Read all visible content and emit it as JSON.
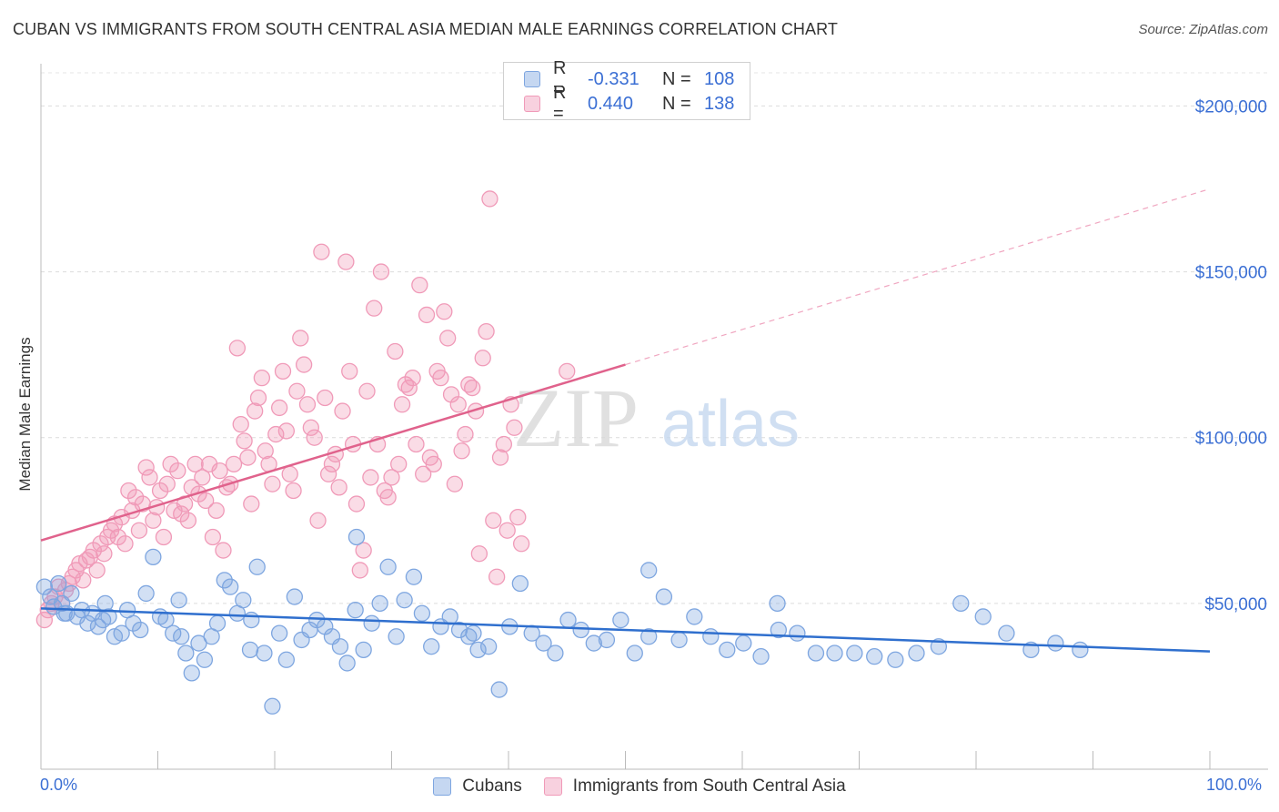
{
  "header": {
    "title": "CUBAN VS IMMIGRANTS FROM SOUTH CENTRAL ASIA MEDIAN MALE EARNINGS CORRELATION CHART",
    "source": "Source: ZipAtlas.com"
  },
  "watermark": {
    "zip": "ZIP",
    "atlas": "atlas"
  },
  "legend": {
    "rows": [
      {
        "r_label": "R =",
        "r_value": "-0.331",
        "n_label": "N =",
        "n_value": "108",
        "color": "#7ea6e0"
      },
      {
        "r_label": "R =",
        "r_value": "0.440",
        "n_label": "N =",
        "n_value": "138",
        "color": "#f09ab8"
      }
    ]
  },
  "bottom_legend": {
    "items": [
      {
        "label": "Cubans",
        "color": "#7ea6e0"
      },
      {
        "label": "Immigrants from South Central Asia",
        "color": "#f09ab8"
      }
    ]
  },
  "axes": {
    "x_min_label": "0.0%",
    "x_max_label": "100.0%",
    "y_labels": [
      "$200,000",
      "$150,000",
      "$100,000",
      "$50,000"
    ]
  },
  "chart_data": {
    "type": "scatter",
    "title": "CUBAN VS IMMIGRANTS FROM SOUTH CENTRAL ASIA MEDIAN MALE EARNINGS CORRELATION CHART",
    "xlabel": "",
    "ylabel": "Median Male Earnings",
    "xlim": [
      0,
      100
    ],
    "ylim": [
      0,
      210000
    ],
    "y_ticks": [
      50000,
      100000,
      150000,
      200000
    ],
    "x_ticks": [
      0,
      10,
      20,
      30,
      40,
      50,
      60,
      70,
      80,
      90,
      100
    ],
    "series": [
      {
        "name": "Cubans",
        "color": "#7ea6e0",
        "line_color": "#2f6fce",
        "R": -0.331,
        "N": 108,
        "trend": {
          "x": [
            0,
            100
          ],
          "y": [
            48500,
            35500
          ]
        },
        "x": [
          0.3,
          0.8,
          1.1,
          1.5,
          1.8,
          2.2,
          2.6,
          3.1,
          3.5,
          4.0,
          4.4,
          4.9,
          5.3,
          5.8,
          6.3,
          6.9,
          7.4,
          7.9,
          8.5,
          9.0,
          9.6,
          10.2,
          10.7,
          11.3,
          11.8,
          12.4,
          12.9,
          13.5,
          14.0,
          14.6,
          15.1,
          15.7,
          16.2,
          16.8,
          17.3,
          17.9,
          18.5,
          19.1,
          19.8,
          20.4,
          21.0,
          21.7,
          22.3,
          23.0,
          23.6,
          24.3,
          24.9,
          25.6,
          26.2,
          26.9,
          27.6,
          28.3,
          29.0,
          29.7,
          30.4,
          31.1,
          31.9,
          32.6,
          33.4,
          34.2,
          35.0,
          35.8,
          36.6,
          37.4,
          38.3,
          39.2,
          40.1,
          41.0,
          42.0,
          43.0,
          44.0,
          45.1,
          46.2,
          47.3,
          48.4,
          49.6,
          50.8,
          52.0,
          53.3,
          54.6,
          55.9,
          57.3,
          58.7,
          60.1,
          61.6,
          63.1,
          64.7,
          66.3,
          67.9,
          69.6,
          71.3,
          73.1,
          74.9,
          76.8,
          78.7,
          80.6,
          82.6,
          84.7,
          86.8,
          88.9,
          2.0,
          5.5,
          12.0,
          18.0,
          27.0,
          37.0,
          52.0,
          63.0
        ],
        "y": [
          55000,
          52000,
          49000,
          56000,
          50000,
          47000,
          53000,
          46000,
          48000,
          44000,
          47000,
          43000,
          45000,
          46000,
          40000,
          41000,
          48000,
          44000,
          42000,
          53000,
          64000,
          46000,
          45000,
          41000,
          51000,
          35000,
          29000,
          38000,
          33000,
          40000,
          44000,
          57000,
          55000,
          47000,
          51000,
          36000,
          61000,
          35000,
          19000,
          41000,
          33000,
          52000,
          39000,
          42000,
          45000,
          43000,
          40000,
          37000,
          32000,
          48000,
          36000,
          44000,
          50000,
          61000,
          40000,
          51000,
          58000,
          47000,
          37000,
          43000,
          46000,
          42000,
          40000,
          36000,
          37000,
          24000,
          43000,
          56000,
          41000,
          38000,
          35000,
          45000,
          42000,
          38000,
          39000,
          45000,
          35000,
          60000,
          52000,
          39000,
          46000,
          40000,
          36000,
          38000,
          34000,
          42000,
          41000,
          35000,
          35000,
          35000,
          34000,
          33000,
          35000,
          37000,
          50000,
          46000,
          41000,
          36000,
          38000,
          36000,
          47000,
          50000,
          40000,
          45000,
          70000,
          41000,
          40000,
          50000
        ]
      },
      {
        "name": "Immigrants from South Central Asia",
        "color": "#f09ab8",
        "line_color": "#e0628c",
        "R": 0.44,
        "N": 138,
        "trend": {
          "x": [
            0,
            50
          ],
          "y": [
            69000,
            122000
          ]
        },
        "trend_dashed": {
          "x": [
            50,
            100
          ],
          "y": [
            122000,
            175000
          ]
        },
        "x": [
          0.3,
          0.6,
          0.9,
          1.2,
          1.5,
          1.8,
          2.1,
          2.4,
          2.7,
          3.0,
          3.3,
          3.6,
          3.9,
          4.2,
          4.5,
          4.8,
          5.1,
          5.4,
          5.7,
          6.0,
          6.3,
          6.6,
          6.9,
          7.2,
          7.5,
          7.8,
          8.1,
          8.4,
          8.7,
          9.0,
          9.3,
          9.6,
          9.9,
          10.2,
          10.5,
          10.8,
          11.1,
          11.4,
          11.7,
          12.0,
          12.3,
          12.6,
          12.9,
          13.2,
          13.5,
          13.8,
          14.1,
          14.4,
          14.7,
          15.0,
          15.3,
          15.6,
          15.9,
          16.2,
          16.5,
          16.8,
          17.1,
          17.4,
          17.7,
          18.0,
          18.3,
          18.6,
          18.9,
          19.2,
          19.5,
          19.8,
          20.1,
          20.4,
          20.7,
          21.0,
          21.3,
          21.6,
          21.9,
          22.2,
          22.5,
          22.8,
          23.1,
          23.4,
          23.7,
          24.0,
          24.3,
          24.6,
          24.9,
          25.2,
          25.5,
          25.8,
          26.1,
          26.4,
          26.7,
          27.0,
          27.3,
          27.6,
          27.9,
          28.2,
          28.5,
          28.8,
          29.1,
          29.4,
          29.7,
          30.0,
          30.3,
          30.6,
          30.9,
          31.2,
          31.5,
          31.8,
          32.1,
          32.4,
          32.7,
          33.0,
          33.3,
          33.6,
          33.9,
          34.2,
          34.5,
          34.8,
          35.1,
          35.4,
          35.7,
          36.0,
          36.3,
          36.6,
          36.9,
          37.2,
          37.5,
          37.8,
          38.1,
          38.4,
          38.7,
          39.0,
          39.3,
          39.6,
          39.9,
          40.2,
          40.5,
          40.8,
          41.1,
          45.0
        ],
        "y": [
          45000,
          48000,
          50000,
          52000,
          55000,
          50000,
          54000,
          56000,
          58000,
          60000,
          62000,
          57000,
          63000,
          64000,
          66000,
          60000,
          68000,
          65000,
          70000,
          72000,
          74000,
          70000,
          76000,
          68000,
          84000,
          78000,
          82000,
          72000,
          80000,
          91000,
          88000,
          75000,
          79000,
          84000,
          70000,
          86000,
          92000,
          78000,
          90000,
          77000,
          80000,
          75000,
          85000,
          92000,
          83000,
          88000,
          81000,
          92000,
          70000,
          78000,
          90000,
          66000,
          85000,
          86000,
          92000,
          127000,
          104000,
          99000,
          94000,
          80000,
          108000,
          112000,
          118000,
          96000,
          92000,
          86000,
          101000,
          109000,
          120000,
          102000,
          89000,
          84000,
          114000,
          130000,
          122000,
          110000,
          103000,
          100000,
          75000,
          156000,
          112000,
          89000,
          92000,
          95000,
          85000,
          108000,
          153000,
          120000,
          98000,
          80000,
          60000,
          66000,
          114000,
          88000,
          139000,
          98000,
          150000,
          84000,
          82000,
          88000,
          126000,
          92000,
          110000,
          116000,
          115000,
          118000,
          98000,
          146000,
          89000,
          137000,
          94000,
          92000,
          120000,
          118000,
          138000,
          130000,
          113000,
          86000,
          110000,
          96000,
          101000,
          116000,
          115000,
          108000,
          65000,
          124000,
          132000,
          172000,
          75000,
          58000,
          94000,
          98000,
          72000,
          110000,
          103000,
          76000,
          68000,
          120000
        ]
      }
    ]
  }
}
